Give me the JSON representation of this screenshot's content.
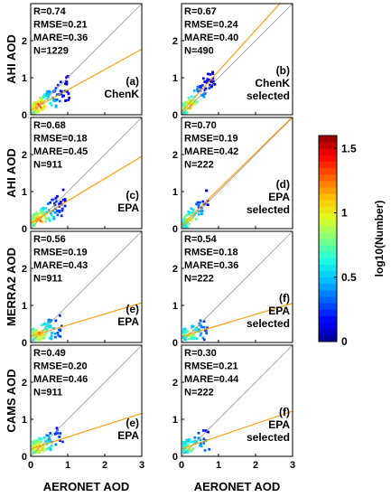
{
  "chart_data": {
    "type": "heatmap",
    "layout": "4x2 panel grid of density scatter plots",
    "x_axis": {
      "label": "AERONET AOD",
      "range": [
        0,
        3
      ],
      "ticks": [
        "0",
        "1",
        "2",
        "3"
      ]
    },
    "y_axis": {
      "range": [
        0,
        3
      ],
      "ticks": [
        "0",
        "1",
        "2"
      ]
    },
    "row_labels": [
      "AHI AOD",
      "AHI AOD",
      "MERRA2 AOD",
      "CAMS AOD"
    ],
    "colorbar": {
      "label": "log10(Number)",
      "range": [
        0,
        1.6
      ],
      "ticks": [
        "0",
        "0.5",
        "1",
        "1.5"
      ],
      "colormap": [
        "#00008f",
        "#0000ff",
        "#0060ff",
        "#00c0ff",
        "#20ffdf",
        "#80ff80",
        "#dfff20",
        "#ffc000",
        "#ff6000",
        "#ff0000",
        "#8f0000"
      ]
    },
    "reference_line": {
      "name": "1:1",
      "color": "#999999"
    },
    "fit_line_color": "#ff9900",
    "panels": [
      {
        "row": 0,
        "col": 0,
        "stats": [
          "R=0.74",
          "RMSE=0.21",
          "MARE=0.36",
          "N=1229"
        ],
        "tag": [
          "(a)",
          "ChenK"
        ],
        "fit": {
          "slope": 0.55,
          "intercept": 0.12
        },
        "cloud": {
          "spread": 1.0,
          "n_cells": 120,
          "peak": 1.5
        }
      },
      {
        "row": 0,
        "col": 1,
        "stats": [
          "R=0.67",
          "RMSE=0.24",
          "MARE=0.40",
          "N=490"
        ],
        "tag": [
          "(b)",
          "ChenK",
          "selected"
        ],
        "fit": {
          "slope": 1.1,
          "intercept": 0.08
        },
        "cloud": {
          "spread": 0.85,
          "n_cells": 95,
          "peak": 1.3
        }
      },
      {
        "row": 1,
        "col": 0,
        "stats": [
          "R=0.68",
          "RMSE=0.18",
          "MARE=0.45",
          "N=911"
        ],
        "tag": [
          "(c)",
          "EPA"
        ],
        "fit": {
          "slope": 0.6,
          "intercept": 0.15
        },
        "cloud": {
          "spread": 0.9,
          "n_cells": 110,
          "peak": 1.4
        }
      },
      {
        "row": 1,
        "col": 1,
        "stats": [
          "R=0.70",
          "RMSE=0.19",
          "MARE=0.42",
          "N=222"
        ],
        "tag": [
          "(d)",
          "EPA",
          "selected"
        ],
        "fit": {
          "slope": 0.98,
          "intercept": 0.08
        },
        "cloud": {
          "spread": 0.75,
          "n_cells": 75,
          "peak": 1.1
        }
      },
      {
        "row": 2,
        "col": 0,
        "stats": [
          "R=0.56",
          "RMSE=0.19",
          "MARE=0.43",
          "N=911"
        ],
        "tag": [
          "(e)",
          "EPA"
        ],
        "fit": {
          "slope": 0.3,
          "intercept": 0.17
        },
        "cloud": {
          "spread": 0.85,
          "n_cells": 90,
          "peak": 1.3
        }
      },
      {
        "row": 2,
        "col": 1,
        "stats": [
          "R=0.54",
          "RMSE=0.18",
          "MARE=0.36",
          "N=222"
        ],
        "tag": [
          "(f)",
          "EPA",
          "selected"
        ],
        "fit": {
          "slope": 0.3,
          "intercept": 0.16
        },
        "cloud": {
          "spread": 0.7,
          "n_cells": 60,
          "peak": 1.0
        }
      },
      {
        "row": 3,
        "col": 0,
        "stats": [
          "R=0.49",
          "RMSE=0.20",
          "MARE=0.46",
          "N=911"
        ],
        "tag": [
          "(e)",
          "EPA"
        ],
        "fit": {
          "slope": 0.32,
          "intercept": 0.2
        },
        "cloud": {
          "spread": 0.85,
          "n_cells": 95,
          "peak": 1.3
        }
      },
      {
        "row": 3,
        "col": 1,
        "stats": [
          "R=0.30",
          "RMSE=0.21",
          "MARE=0.44",
          "N=222"
        ],
        "tag": [
          "(f)",
          "EPA",
          "selected"
        ],
        "fit": {
          "slope": 0.34,
          "intercept": 0.2
        },
        "cloud": {
          "spread": 0.7,
          "n_cells": 65,
          "peak": 1.0
        }
      }
    ]
  }
}
